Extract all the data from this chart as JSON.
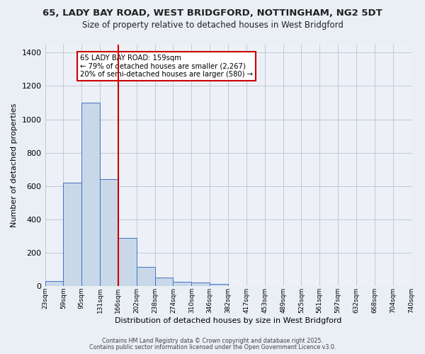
{
  "title1": "65, LADY BAY ROAD, WEST BRIDGFORD, NOTTINGHAM, NG2 5DT",
  "title2": "Size of property relative to detached houses in West Bridgford",
  "xlabel": "Distribution of detached houses by size in West Bridgford",
  "ylabel": "Number of detached properties",
  "bin_labels": [
    "23sqm",
    "59sqm",
    "95sqm",
    "131sqm",
    "166sqm",
    "202sqm",
    "238sqm",
    "274sqm",
    "310sqm",
    "346sqm",
    "382sqm",
    "417sqm",
    "453sqm",
    "489sqm",
    "525sqm",
    "561sqm",
    "597sqm",
    "632sqm",
    "668sqm",
    "704sqm",
    "740sqm"
  ],
  "bar_values": [
    30,
    620,
    1100,
    640,
    290,
    115,
    50,
    25,
    20,
    15,
    0,
    0,
    0,
    0,
    0,
    0,
    0,
    0,
    0,
    0
  ],
  "bar_color": "#c8d8e8",
  "bar_edge_color": "#4472c4",
  "annotation_text": "65 LADY BAY ROAD: 159sqm\n← 79% of detached houses are smaller (2,267)\n20% of semi-detached houses are larger (580) →",
  "ylim": [
    0,
    1450
  ],
  "yticks": [
    0,
    200,
    400,
    600,
    800,
    1000,
    1200,
    1400
  ],
  "footer1": "Contains HM Land Registry data © Crown copyright and database right 2025.",
  "footer2": "Contains public sector information licensed under the Open Government Licence v3.0.",
  "bg_color": "#eaeff5",
  "plot_bg_color": "#edf1f7"
}
